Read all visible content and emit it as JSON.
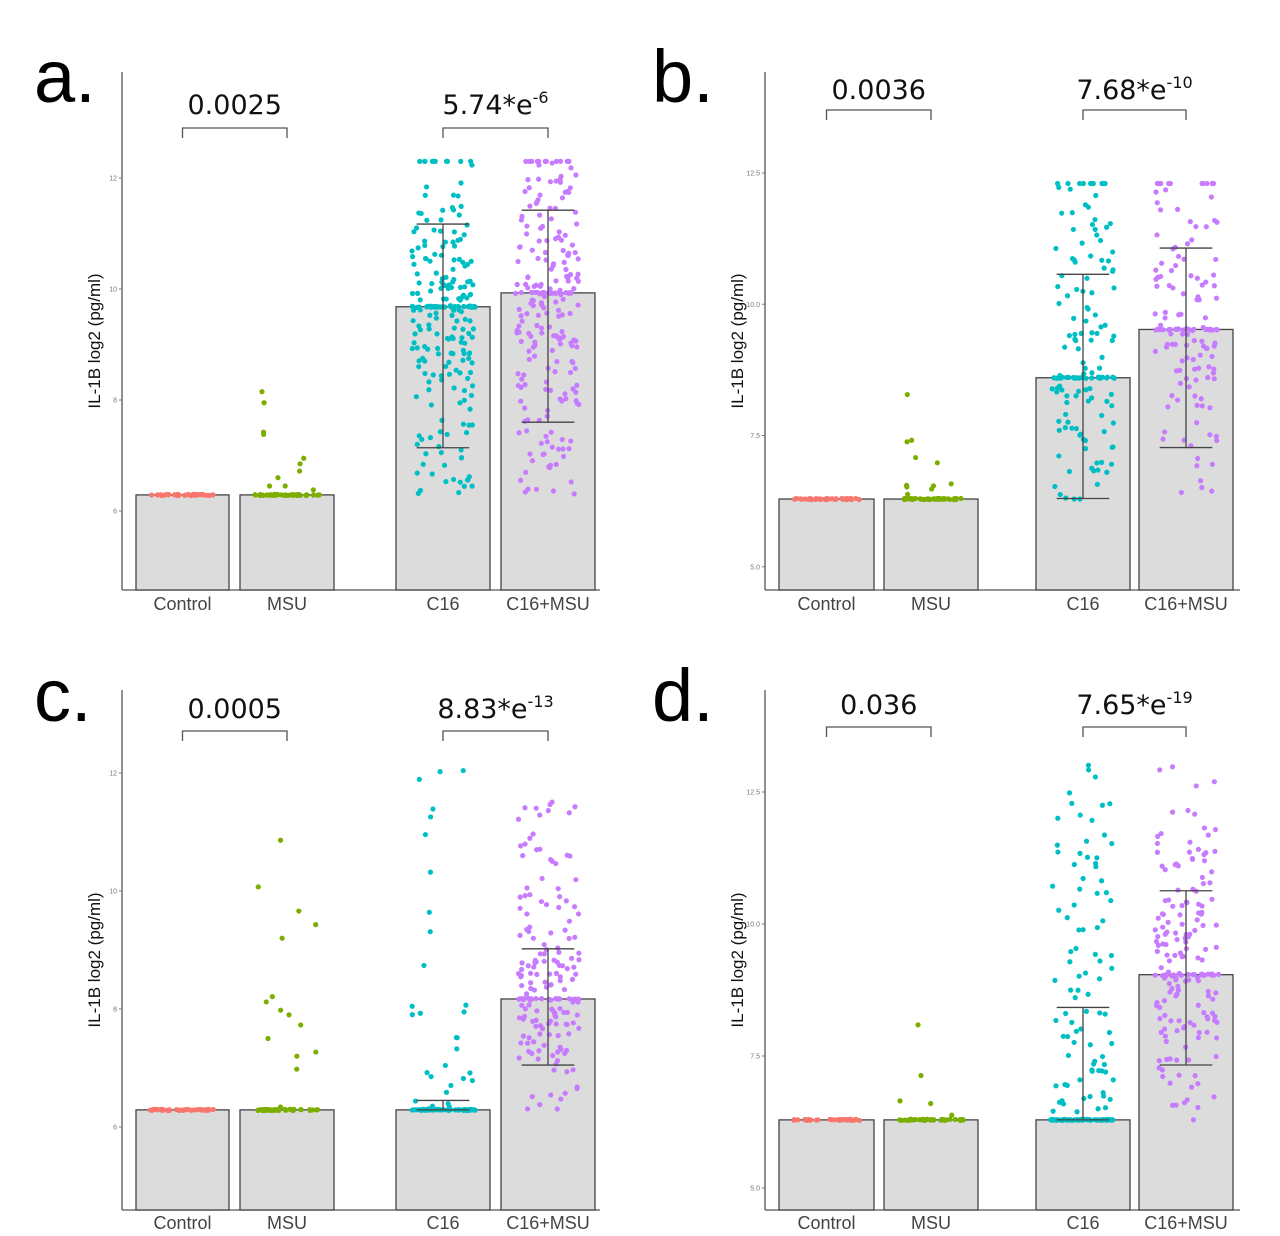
{
  "chart_data": [
    {
      "type": "bar",
      "panel": "a.",
      "ylabel": "IL-1B log2 (pg/ml)",
      "xlabel": "",
      "ylim": [
        4.6,
        13.9
      ],
      "yticks": [
        6,
        8,
        10,
        12
      ],
      "ytick_labels": [
        "6",
        "8",
        "10",
        "12"
      ],
      "groups": [
        {
          "categories": [
            "Control",
            "MSU"
          ],
          "pvalue": "0.0025",
          "pvalue_exp": ""
        },
        {
          "categories": [
            "C16",
            "C16+MSU"
          ],
          "pvalue": "5.74*e",
          "pvalue_exp": "-6"
        }
      ],
      "bars": [
        {
          "category": "Control",
          "value": 6.29,
          "error_high": null,
          "error_low": null,
          "color": "#F8766D"
        },
        {
          "category": "MSU",
          "value": 6.29,
          "error_high": null,
          "error_low": null,
          "color": "#7CAE00"
        },
        {
          "category": "C16",
          "value": 9.68,
          "error_high": 11.17,
          "error_low": 7.14,
          "color": "#00BFC4"
        },
        {
          "category": "C16+MSU",
          "value": 9.93,
          "error_high": 11.42,
          "error_low": 7.6,
          "color": "#C77CFF"
        }
      ],
      "points": {
        "Control": {
          "floor_count": 40,
          "values": []
        },
        "MSU": {
          "floor_count": 40,
          "values": [
            8.15,
            7.95,
            7.42,
            7.38,
            6.95,
            6.85,
            6.72,
            6.6,
            6.45,
            6.45,
            6.38
          ]
        },
        "C16": {
          "floor_count": 30,
          "max": 12.3,
          "spread_count": 190,
          "min": 6.29
        },
        "C16+MSU": {
          "floor_count": 20,
          "max": 12.3,
          "spread_count": 200,
          "min": 6.29
        }
      }
    },
    {
      "type": "bar",
      "panel": "b.",
      "ylabel": "IL-1B log2 (pg/ml)",
      "xlabel": "",
      "ylim": [
        4.6,
        14.4
      ],
      "yticks": [
        5.0,
        7.5,
        10.0,
        12.5
      ],
      "ytick_labels": [
        "5.0",
        "7.5",
        "10.0",
        "12.5"
      ],
      "groups": [
        {
          "categories": [
            "Control",
            "MSU"
          ],
          "pvalue": "0.0036",
          "pvalue_exp": ""
        },
        {
          "categories": [
            "C16",
            "C16+MSU"
          ],
          "pvalue": "7.68*e",
          "pvalue_exp": "-10"
        }
      ],
      "bars": [
        {
          "category": "Control",
          "value": 6.29,
          "error_high": null,
          "error_low": null,
          "color": "#F8766D"
        },
        {
          "category": "MSU",
          "value": 6.29,
          "error_high": null,
          "error_low": null,
          "color": "#7CAE00"
        },
        {
          "category": "C16",
          "value": 8.6,
          "error_high": 10.57,
          "error_low": 6.3,
          "color": "#00BFC4"
        },
        {
          "category": "C16+MSU",
          "value": 9.52,
          "error_high": 11.07,
          "error_low": 7.27,
          "color": "#C77CFF"
        }
      ],
      "points": {
        "Control": {
          "floor_count": 40,
          "values": []
        },
        "MSU": {
          "floor_count": 40,
          "values": [
            8.28,
            7.41,
            7.38,
            7.08,
            6.98,
            6.55,
            6.54,
            6.58,
            6.48,
            6.52,
            6.38
          ]
        },
        "C16": {
          "floor_count": 30,
          "max": 12.3,
          "spread_count": 110,
          "min": 6.29
        },
        "C16+MSU": {
          "floor_count": 20,
          "max": 12.3,
          "spread_count": 110,
          "min": 6.29
        }
      }
    },
    {
      "type": "bar",
      "panel": "c.",
      "ylabel": "IL-1B log2 (pg/ml)",
      "xlabel": "",
      "ylim": [
        4.6,
        13.5
      ],
      "yticks": [
        6,
        8,
        10,
        12
      ],
      "ytick_labels": [
        "6",
        "8",
        "10",
        "12"
      ],
      "groups": [
        {
          "categories": [
            "Control",
            "MSU"
          ],
          "pvalue": "0.0005",
          "pvalue_exp": ""
        },
        {
          "categories": [
            "C16",
            "C16+MSU"
          ],
          "pvalue": "8.83*e",
          "pvalue_exp": "-13"
        }
      ],
      "bars": [
        {
          "category": "Control",
          "value": 6.29,
          "error_high": null,
          "error_low": null,
          "color": "#F8766D"
        },
        {
          "category": "MSU",
          "value": 6.29,
          "error_high": null,
          "error_low": null,
          "color": "#7CAE00"
        },
        {
          "category": "C16",
          "value": 6.29,
          "error_high": 6.45,
          "error_low": 6.29,
          "color": "#00BFC4"
        },
        {
          "category": "C16+MSU",
          "value": 8.17,
          "error_high": 9.02,
          "error_low": 7.05,
          "color": "#C77CFF"
        }
      ],
      "points": {
        "Control": {
          "floor_count": 40,
          "values": []
        },
        "MSU": {
          "floor_count": 40,
          "values": [
            10.86,
            10.07,
            9.66,
            9.43,
            9.2,
            8.21,
            8.12,
            7.98,
            7.9,
            7.73,
            7.5,
            7.27,
            7.2,
            6.98,
            6.34
          ]
        },
        "C16": {
          "floor_count": 40,
          "max": 12.28,
          "spread_count": 45,
          "min": 6.29
        },
        "C16+MSU": {
          "floor_count": 20,
          "max": 11.55,
          "spread_count": 160,
          "min": 6.29
        }
      }
    },
    {
      "type": "bar",
      "panel": "d.",
      "ylabel": "IL-1B log2 (pg/ml)",
      "xlabel": "",
      "ylim": [
        4.6,
        14.4
      ],
      "yticks": [
        5.0,
        7.5,
        10.0,
        12.5
      ],
      "ytick_labels": [
        "5.0",
        "7.5",
        "10.0",
        "12.5"
      ],
      "groups": [
        {
          "categories": [
            "Control",
            "MSU"
          ],
          "pvalue": "0.036",
          "pvalue_exp": ""
        },
        {
          "categories": [
            "C16",
            "C16+MSU"
          ],
          "pvalue": "7.65*e",
          "pvalue_exp": "-19"
        }
      ],
      "bars": [
        {
          "category": "Control",
          "value": 6.29,
          "error_high": null,
          "error_low": null,
          "color": "#F8766D"
        },
        {
          "category": "MSU",
          "value": 6.29,
          "error_high": null,
          "error_low": null,
          "color": "#7CAE00"
        },
        {
          "category": "C16",
          "value": 6.29,
          "error_high": 8.42,
          "error_low": 6.29,
          "color": "#00BFC4"
        },
        {
          "category": "C16+MSU",
          "value": 9.04,
          "error_high": 10.63,
          "error_low": 7.33,
          "color": "#C77CFF"
        }
      ],
      "points": {
        "Control": {
          "floor_count": 40,
          "values": []
        },
        "MSU": {
          "floor_count": 40,
          "values": [
            8.09,
            7.13,
            6.65,
            6.6,
            6.38
          ]
        },
        "C16": {
          "floor_count": 40,
          "max": 13.2,
          "spread_count": 120,
          "min": 6.29
        },
        "C16+MSU": {
          "floor_count": 20,
          "max": 13.1,
          "spread_count": 160,
          "min": 6.29
        }
      }
    }
  ]
}
